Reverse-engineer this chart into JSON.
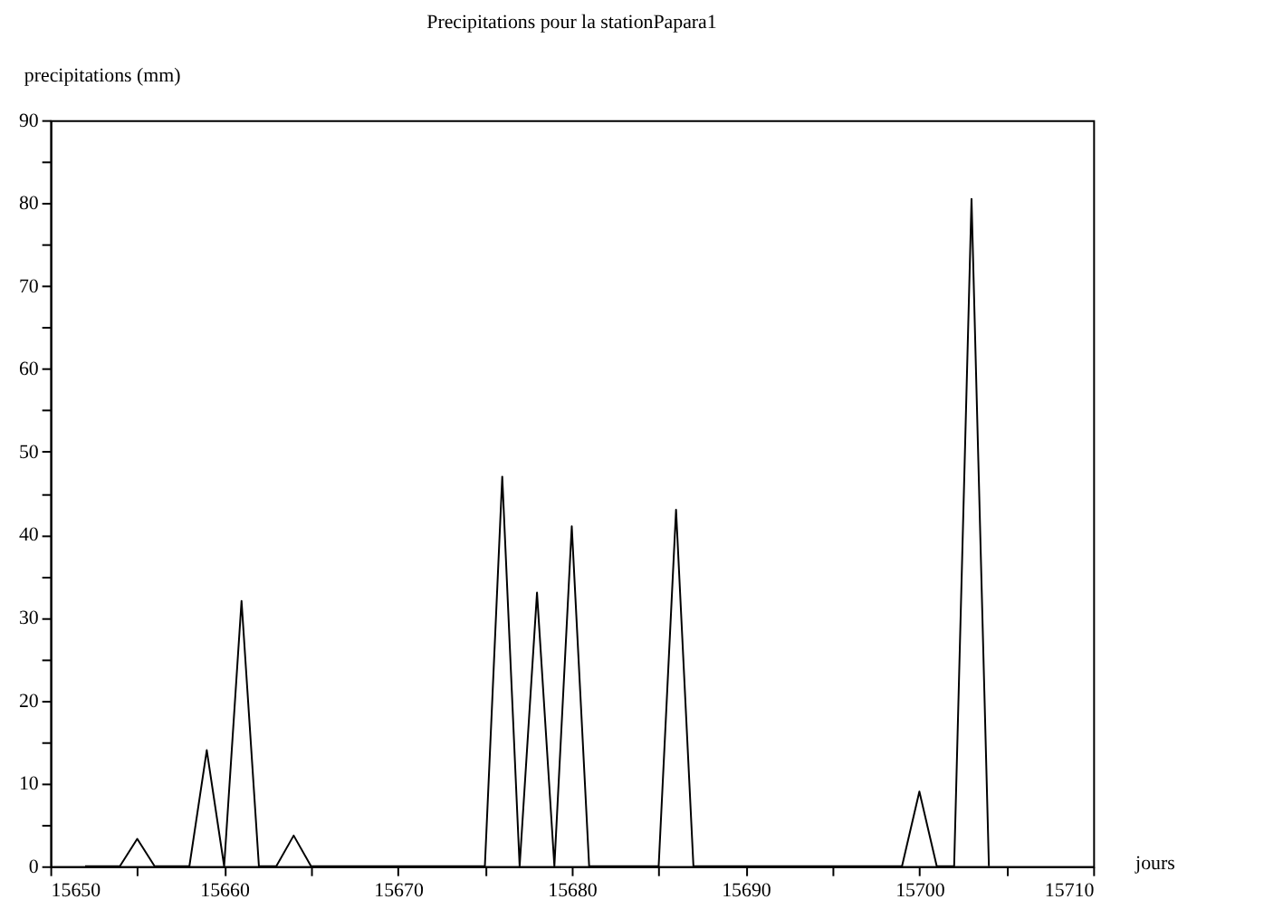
{
  "chart_data": {
    "type": "line",
    "title": "Precipitations pour la stationPapara1",
    "xlabel": "jours",
    "ylabel": "precipitations (mm)",
    "x": [
      15652,
      15653,
      15654,
      15655,
      15656,
      15657,
      15658,
      15659,
      15660,
      15661,
      15662,
      15663,
      15664,
      15665,
      15666,
      15667,
      15668,
      15669,
      15670,
      15671,
      15672,
      15673,
      15674,
      15675,
      15676,
      15677,
      15678,
      15679,
      15680,
      15681,
      15682,
      15683,
      15684,
      15685,
      15686,
      15687,
      15688,
      15689,
      15690,
      15691,
      15692,
      15693,
      15694,
      15695,
      15696,
      15697,
      15698,
      15699,
      15700,
      15701,
      15702,
      15703,
      15704
    ],
    "series": [
      {
        "color": "#000000",
        "values": [
          0,
          0,
          0,
          3.3,
          0,
          0,
          0,
          14,
          0,
          32,
          0,
          0,
          3.7,
          0,
          0,
          0,
          0,
          0,
          0,
          0,
          0,
          0,
          0,
          0,
          47,
          0,
          33,
          0,
          41,
          0,
          0,
          0,
          0,
          0,
          43,
          0,
          0,
          0,
          0,
          0,
          0,
          0,
          0,
          0,
          0,
          0,
          0,
          0,
          9,
          0,
          0,
          80.5,
          0
        ]
      }
    ],
    "xlim": [
      15650,
      15710
    ],
    "ylim": [
      0,
      90
    ],
    "xticks": [
      15650,
      {
        "value": 15655,
        "label": null
      },
      15660,
      {
        "value": 15665,
        "label": null
      },
      15670,
      {
        "value": 15675,
        "label": null
      },
      15680,
      {
        "value": 15685,
        "label": null
      },
      15690,
      {
        "value": 15695,
        "label": null
      },
      15700,
      {
        "value": 15705,
        "label": null
      },
      15710
    ],
    "yticks": [
      0,
      {
        "value": 5,
        "label": null
      },
      10,
      {
        "value": 15,
        "label": null
      },
      20,
      {
        "value": 25,
        "label": null
      },
      30,
      {
        "value": 35,
        "label": null
      },
      40,
      {
        "value": 45,
        "label": null
      },
      50,
      {
        "value": 55,
        "label": null
      },
      60,
      {
        "value": 65,
        "label": null
      },
      70,
      {
        "value": 75,
        "label": null
      },
      80,
      {
        "value": 85,
        "label": null
      },
      90
    ],
    "grid": false,
    "marker": "none",
    "line_style": "solid"
  }
}
